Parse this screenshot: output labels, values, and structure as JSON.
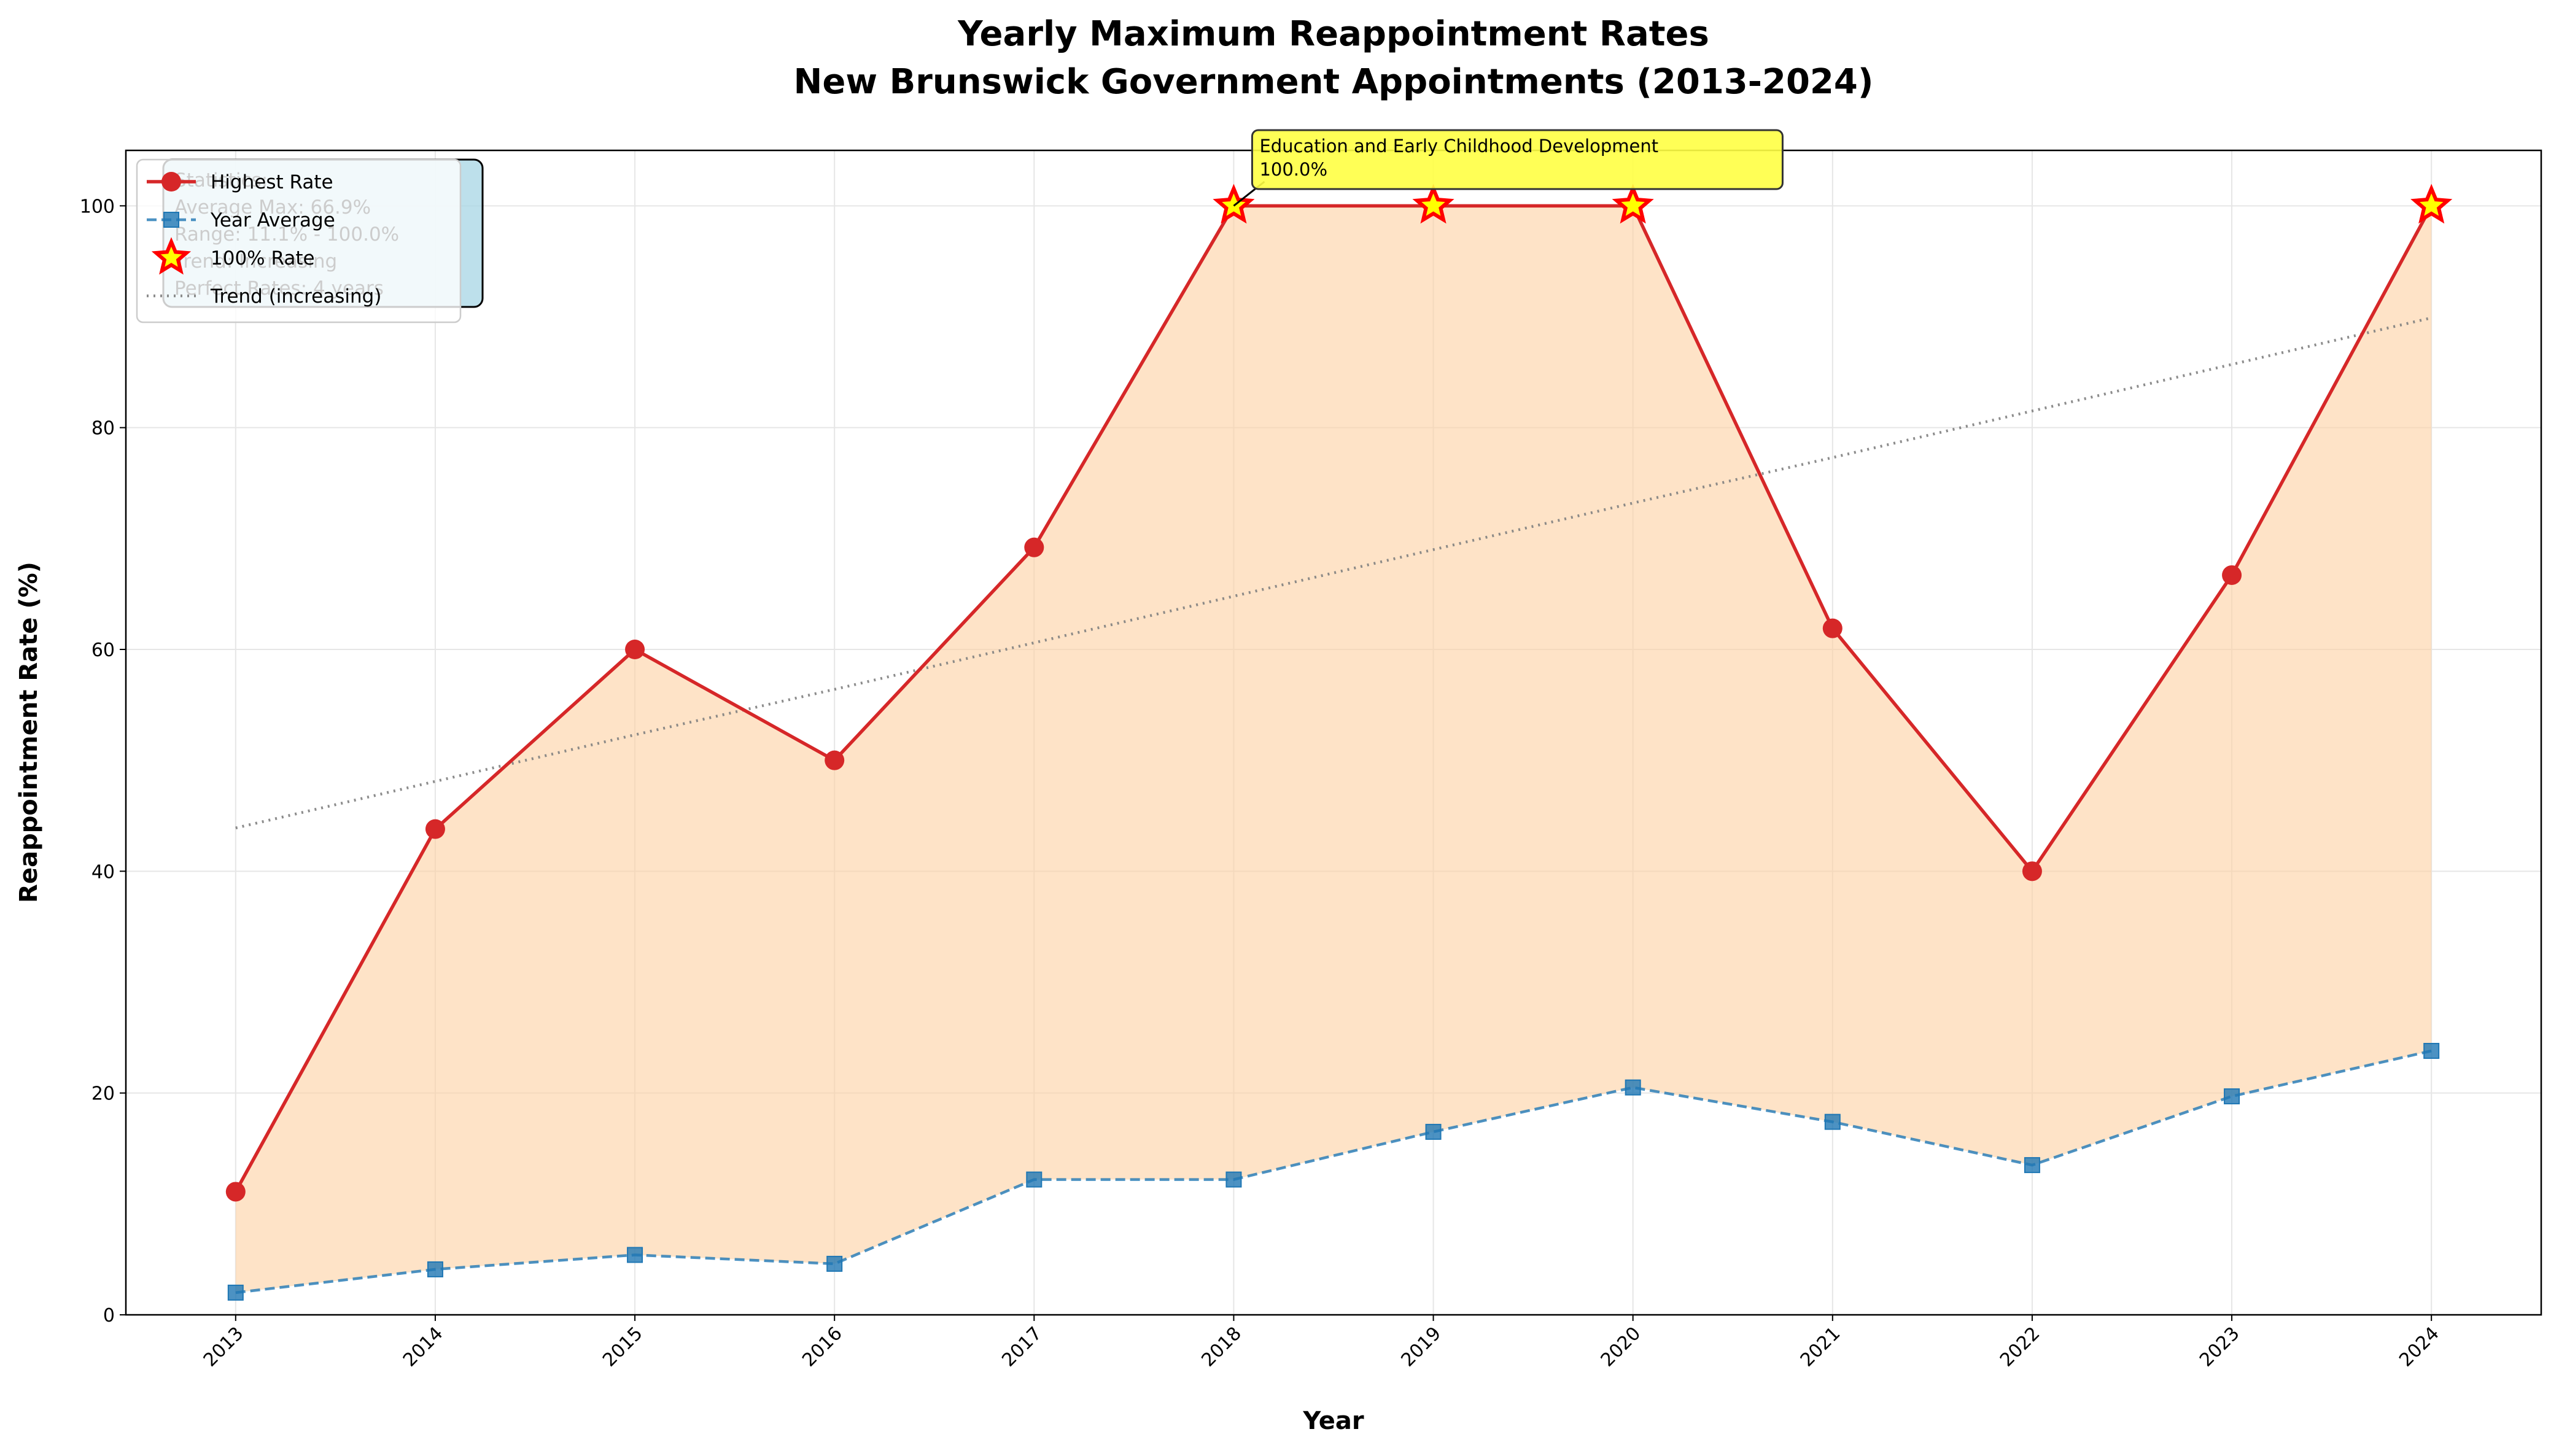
{
  "chart_data": {
    "type": "line",
    "title": "Yearly Maximum Reappointment Rates",
    "subtitle": "New Brunswick Government Appointments (2013-2024)",
    "x_label": "Year",
    "y_label": "Reappointment Rate (%)",
    "x": [
      2013,
      2014,
      2015,
      2016,
      2017,
      2018,
      2019,
      2020,
      2021,
      2022,
      2023,
      2024
    ],
    "series": [
      {
        "name": "Highest Rate",
        "color": "#d62728",
        "style": "solid-circle",
        "values": [
          11.1,
          43.8,
          60,
          50,
          69.2,
          100,
          100,
          100,
          61.9,
          40,
          66.7,
          100
        ]
      },
      {
        "name": "Year Average",
        "color": "#1f77b4",
        "style": "dashed-square",
        "values": [
          2.0,
          4.1,
          5.4,
          4.6,
          12.2,
          12.2,
          16.5,
          20.5,
          17.4,
          13.5,
          19.7,
          23.8
        ]
      },
      {
        "name": "100% Rate",
        "color": "#ffff00",
        "style": "star",
        "values": [
          null,
          null,
          null,
          null,
          null,
          100,
          100,
          100,
          null,
          null,
          null,
          100
        ]
      },
      {
        "name": "Trend (increasing)",
        "color": "#808080",
        "style": "dotted",
        "values": [
          43.9,
          48.1,
          52.3,
          56.4,
          60.6,
          64.8,
          69.0,
          73.2,
          77.3,
          81.5,
          85.7,
          89.9
        ]
      }
    ],
    "fill_color": "#fdd0a2",
    "annotation": {
      "text": "Education and Early Childhood Development",
      "value_label": "100.0%",
      "x": 2018,
      "y": 100
    },
    "stats_box": [
      "Statistics:",
      "Average Max: 66.9%",
      "Range: 11.1% - 100.0%",
      "Trend: Increasing",
      "Perfect Rates: 4 years"
    ],
    "xlim": [
      2012.45,
      2024.55
    ],
    "ylim": [
      0,
      105
    ],
    "xticks": [
      2013,
      2014,
      2015,
      2016,
      2017,
      2018,
      2019,
      2020,
      2021,
      2022,
      2023,
      2024
    ],
    "yticks": [
      0,
      20,
      40,
      60,
      80,
      100
    ],
    "grid": true,
    "legend": "upper left"
  }
}
